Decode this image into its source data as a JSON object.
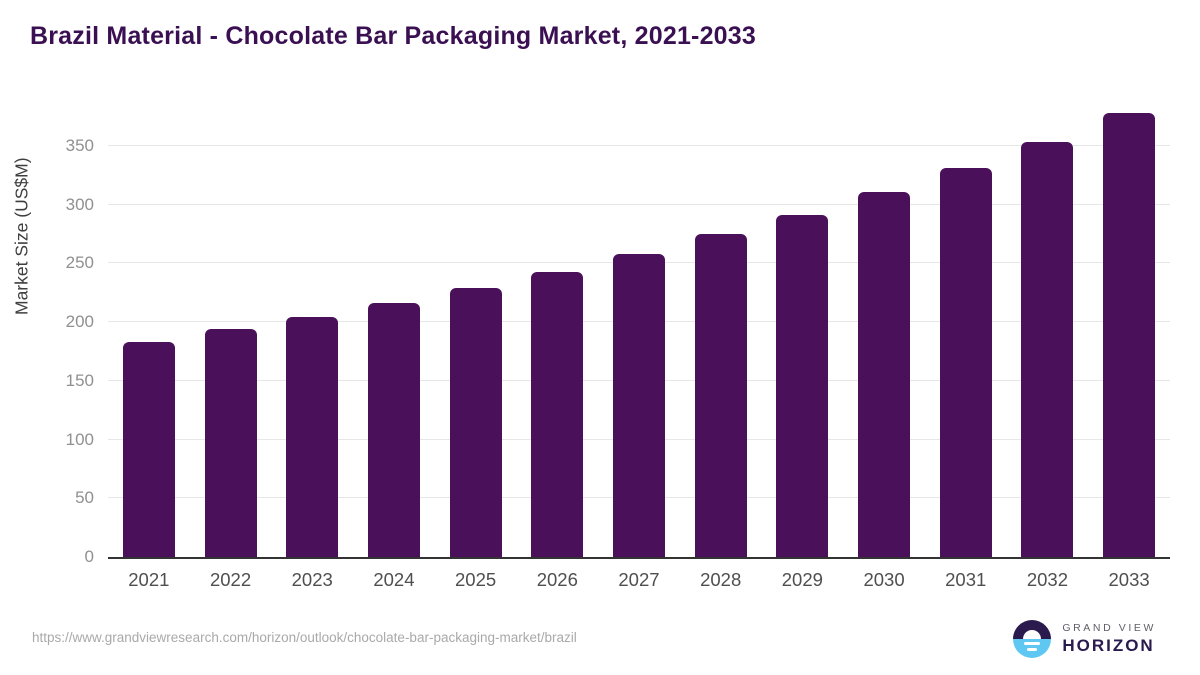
{
  "title": "Brazil Material - Chocolate Bar Packaging Market, 2021-2033",
  "chart_data": {
    "type": "bar",
    "title": "Brazil Material - Chocolate Bar Packaging Market, 2021-2033",
    "categories": [
      "2021",
      "2022",
      "2023",
      "2024",
      "2025",
      "2026",
      "2027",
      "2028",
      "2029",
      "2030",
      "2031",
      "2032",
      "2033"
    ],
    "values": [
      183,
      194,
      204,
      216,
      229,
      243,
      258,
      275,
      291,
      311,
      331,
      353,
      378
    ],
    "xlabel": "",
    "ylabel": "Market Size (US$M)",
    "ylim": [
      0,
      390
    ],
    "yticks": [
      0,
      50,
      100,
      150,
      200,
      250,
      300,
      350
    ],
    "grid": "horizontal",
    "legend": "none"
  },
  "colors": {
    "bar": "#4A115A",
    "title": "#3A1052",
    "gridline": "#e7e7e7",
    "axis_line": "#333333",
    "logo_navy": "#2B1A4D",
    "logo_blue": "#5EC7F2"
  },
  "footer": {
    "source_url": "https://www.grandviewresearch.com/horizon/outlook/chocolate-bar-packaging-market/brazil",
    "logo": {
      "line1": "GRAND VIEW",
      "line2": "HORIZON"
    }
  }
}
